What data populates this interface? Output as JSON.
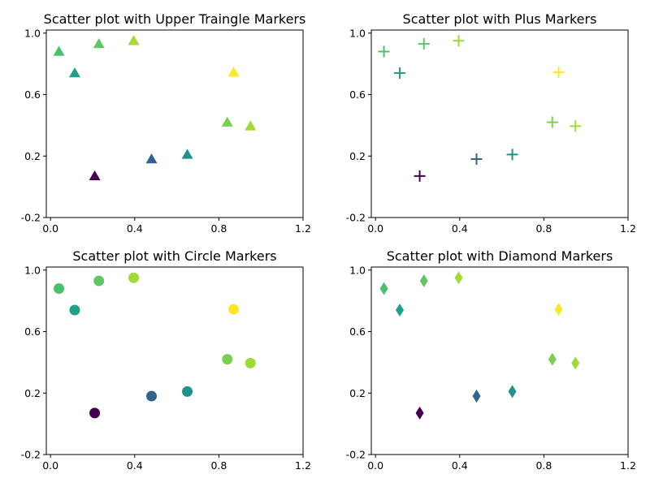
{
  "chart_data": [
    {
      "type": "scatter",
      "title": "Scatter plot with Upper Traingle Markers",
      "marker": "triangle-up",
      "xlabel": "",
      "ylabel": "",
      "xlim": [
        -0.02,
        1.2
      ],
      "ylim": [
        -0.2,
        1.02
      ],
      "xticks": [
        0.0,
        0.4,
        0.8,
        1.2
      ],
      "yticks": [
        -0.2,
        0.2,
        0.6,
        1.0
      ],
      "xtick_labels": [
        "0.0",
        "0.4",
        "0.8",
        "1.2"
      ],
      "ytick_labels": [
        "-0.2",
        "0.2",
        "0.6",
        "1.0"
      ],
      "grid": false,
      "points": [
        {
          "x": 0.04,
          "y": 0.88,
          "color": "#4ac16d"
        },
        {
          "x": 0.115,
          "y": 0.74,
          "color": "#1fa088"
        },
        {
          "x": 0.23,
          "y": 0.93,
          "color": "#5ec962"
        },
        {
          "x": 0.395,
          "y": 0.95,
          "color": "#a2da37"
        },
        {
          "x": 0.21,
          "y": 0.07,
          "color": "#440154"
        },
        {
          "x": 0.48,
          "y": 0.18,
          "color": "#33638d"
        },
        {
          "x": 0.65,
          "y": 0.21,
          "color": "#21918c"
        },
        {
          "x": 0.84,
          "y": 0.42,
          "color": "#7ad151"
        },
        {
          "x": 0.87,
          "y": 0.745,
          "color": "#fde725"
        },
        {
          "x": 0.95,
          "y": 0.395,
          "color": "#a0da39"
        }
      ]
    },
    {
      "type": "scatter",
      "title": "Scatter plot with Plus Markers",
      "marker": "plus",
      "xlabel": "",
      "ylabel": "",
      "xlim": [
        -0.02,
        1.2
      ],
      "ylim": [
        -0.2,
        1.02
      ],
      "xticks": [
        0.0,
        0.4,
        0.8,
        1.2
      ],
      "yticks": [
        -0.2,
        0.2,
        0.6,
        1.0
      ],
      "xtick_labels": [
        "0.0",
        "0.4",
        "0.8",
        "1.2"
      ],
      "ytick_labels": [
        "-0.2",
        "0.2",
        "0.6",
        "1.0"
      ],
      "grid": false,
      "points": [
        {
          "x": 0.04,
          "y": 0.88,
          "color": "#4ac16d"
        },
        {
          "x": 0.115,
          "y": 0.74,
          "color": "#1fa088"
        },
        {
          "x": 0.23,
          "y": 0.93,
          "color": "#5ec962"
        },
        {
          "x": 0.395,
          "y": 0.95,
          "color": "#a2da37"
        },
        {
          "x": 0.21,
          "y": 0.07,
          "color": "#440154"
        },
        {
          "x": 0.48,
          "y": 0.18,
          "color": "#33638d"
        },
        {
          "x": 0.65,
          "y": 0.21,
          "color": "#21918c"
        },
        {
          "x": 0.84,
          "y": 0.42,
          "color": "#7ad151"
        },
        {
          "x": 0.87,
          "y": 0.745,
          "color": "#fde725"
        },
        {
          "x": 0.95,
          "y": 0.395,
          "color": "#a0da39"
        }
      ]
    },
    {
      "type": "scatter",
      "title": "Scatter plot with Circle Markers",
      "marker": "circle",
      "xlabel": "",
      "ylabel": "",
      "xlim": [
        -0.02,
        1.2
      ],
      "ylim": [
        -0.2,
        1.02
      ],
      "xticks": [
        0.0,
        0.4,
        0.8,
        1.2
      ],
      "yticks": [
        -0.2,
        0.2,
        0.6,
        1.0
      ],
      "xtick_labels": [
        "0.0",
        "0.4",
        "0.8",
        "1.2"
      ],
      "ytick_labels": [
        "-0.2",
        "0.2",
        "0.6",
        "1.0"
      ],
      "grid": false,
      "points": [
        {
          "x": 0.04,
          "y": 0.88,
          "color": "#4ac16d"
        },
        {
          "x": 0.115,
          "y": 0.74,
          "color": "#1fa088"
        },
        {
          "x": 0.23,
          "y": 0.93,
          "color": "#5ec962"
        },
        {
          "x": 0.395,
          "y": 0.95,
          "color": "#a2da37"
        },
        {
          "x": 0.21,
          "y": 0.07,
          "color": "#440154"
        },
        {
          "x": 0.48,
          "y": 0.18,
          "color": "#33638d"
        },
        {
          "x": 0.65,
          "y": 0.21,
          "color": "#21918c"
        },
        {
          "x": 0.84,
          "y": 0.42,
          "color": "#7ad151"
        },
        {
          "x": 0.87,
          "y": 0.745,
          "color": "#fde725"
        },
        {
          "x": 0.95,
          "y": 0.395,
          "color": "#a0da39"
        }
      ]
    },
    {
      "type": "scatter",
      "title": "Scatter plot with Diamond Markers",
      "marker": "diamond",
      "xlabel": "",
      "ylabel": "",
      "xlim": [
        -0.02,
        1.2
      ],
      "ylim": [
        -0.2,
        1.02
      ],
      "xticks": [
        0.0,
        0.4,
        0.8,
        1.2
      ],
      "yticks": [
        -0.2,
        0.2,
        0.6,
        1.0
      ],
      "xtick_labels": [
        "0.0",
        "0.4",
        "0.8",
        "1.2"
      ],
      "ytick_labels": [
        "-0.2",
        "0.2",
        "0.6",
        "1.0"
      ],
      "grid": false,
      "points": [
        {
          "x": 0.04,
          "y": 0.88,
          "color": "#4ac16d"
        },
        {
          "x": 0.115,
          "y": 0.74,
          "color": "#1fa088"
        },
        {
          "x": 0.23,
          "y": 0.93,
          "color": "#5ec962"
        },
        {
          "x": 0.395,
          "y": 0.95,
          "color": "#a2da37"
        },
        {
          "x": 0.21,
          "y": 0.07,
          "color": "#440154"
        },
        {
          "x": 0.48,
          "y": 0.18,
          "color": "#33638d"
        },
        {
          "x": 0.65,
          "y": 0.21,
          "color": "#21918c"
        },
        {
          "x": 0.84,
          "y": 0.42,
          "color": "#7ad151"
        },
        {
          "x": 0.87,
          "y": 0.745,
          "color": "#fde725"
        },
        {
          "x": 0.95,
          "y": 0.395,
          "color": "#a0da39"
        }
      ]
    }
  ]
}
